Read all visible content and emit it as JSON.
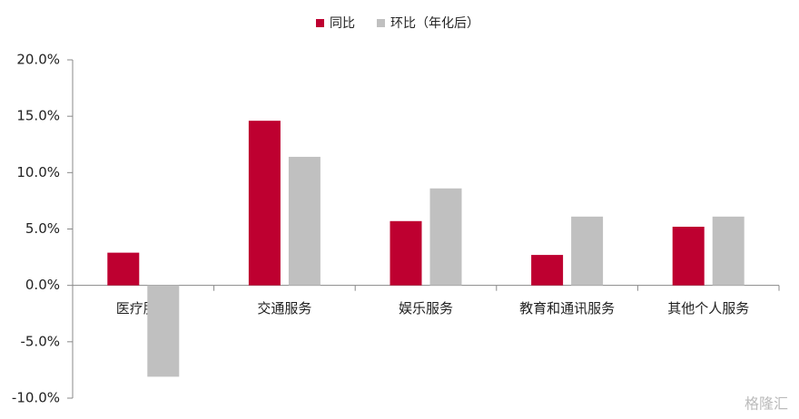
{
  "chart_data": {
    "type": "bar",
    "categories": [
      "医疗服务",
      "交通服务",
      "娱乐服务",
      "教育和通讯服务",
      "其他个人服务"
    ],
    "series": [
      {
        "name": "同比",
        "color": "#be0030",
        "values": [
          2.9,
          14.6,
          5.7,
          2.7,
          5.2
        ]
      },
      {
        "name": "环比（年化后）",
        "color": "#c0c0c0",
        "values": [
          -8.1,
          11.4,
          8.6,
          6.1,
          6.1
        ]
      }
    ],
    "ylim": [
      -10,
      20
    ],
    "yticks": [
      {
        "value": -10,
        "label": "-10.0%"
      },
      {
        "value": -5,
        "label": "-5.0%"
      },
      {
        "value": 0,
        "label": "0.0%"
      },
      {
        "value": 5,
        "label": "5.0%"
      },
      {
        "value": 10,
        "label": "10.0%"
      },
      {
        "value": 15,
        "label": "15.0%"
      },
      {
        "value": 20,
        "label": "20.0%"
      }
    ],
    "legend": "top",
    "watermark": "格隆汇"
  }
}
